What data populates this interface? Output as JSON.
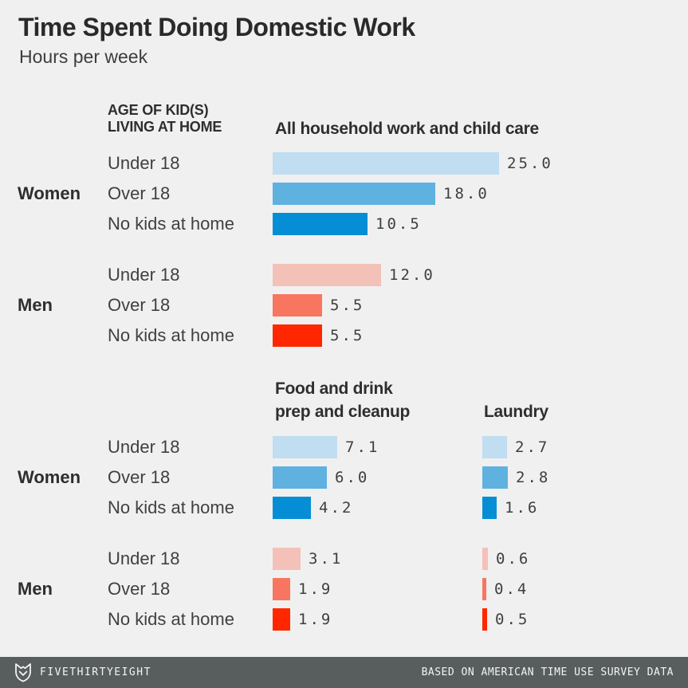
{
  "title": "Time Spent Doing Domestic Work",
  "subtitle": "Hours per week",
  "row_axis_header": {
    "line1": "AGE OF KID(S)",
    "line2": "LIVING AT HOME"
  },
  "chart_data": {
    "type": "bar",
    "orientation": "horizontal",
    "title": "Time Spent Doing Domestic Work",
    "subtitle": "Hours per week",
    "unit": "hours per week",
    "categories": [
      "Under 18",
      "Over 18",
      "No kids at home"
    ],
    "groups": [
      "Women",
      "Men"
    ],
    "panels": [
      {
        "metric": "All household work and child care",
        "header_lines": [
          "All household work and child care"
        ],
        "series": [
          {
            "name": "Women",
            "values": [
              25.0,
              18.0,
              10.5
            ]
          },
          {
            "name": "Men",
            "values": [
              12.0,
              5.5,
              5.5
            ]
          }
        ]
      },
      {
        "metric": "Food and drink prep and cleanup",
        "header_lines": [
          "Food and drink",
          "prep and cleanup"
        ],
        "series": [
          {
            "name": "Women",
            "values": [
              7.1,
              6.0,
              4.2
            ]
          },
          {
            "name": "Men",
            "values": [
              3.1,
              1.9,
              1.9
            ]
          }
        ]
      },
      {
        "metric": "Laundry",
        "header_lines": [
          "Laundry"
        ],
        "series": [
          {
            "name": "Women",
            "values": [
              2.7,
              2.8,
              1.6
            ]
          },
          {
            "name": "Men",
            "values": [
              0.6,
              0.4,
              0.5
            ]
          }
        ]
      }
    ],
    "colors": {
      "women": [
        "#c1ddf1",
        "#5fb2e0",
        "#058ed5"
      ],
      "men": [
        "#f4c1b8",
        "#f8765f",
        "#ff2700"
      ]
    },
    "value_label_decimals": 1,
    "legend_position": "none",
    "grid": false,
    "background": "#f0f0f0"
  },
  "footer": {
    "brand": "FIVETHIRTYEIGHT",
    "credit": "BASED ON AMERICAN TIME USE SURVEY DATA",
    "bar_color": "#585d5e"
  }
}
